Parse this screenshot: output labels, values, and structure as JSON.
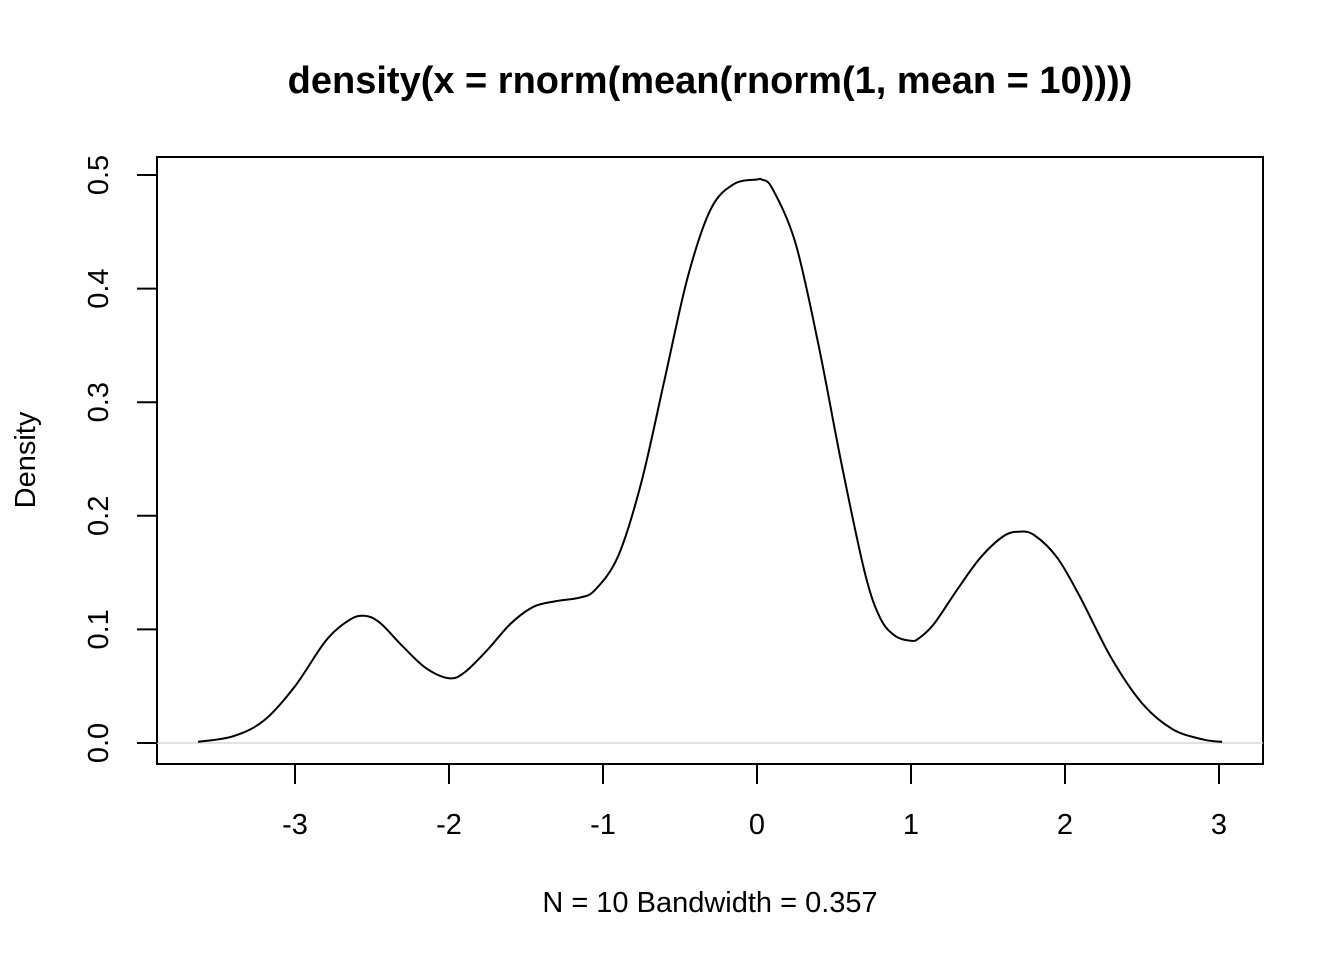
{
  "chart_data": {
    "type": "line",
    "title": "density(x = rnorm(mean(rnorm(1, mean = 10))))",
    "xlabel": "N = 10   Bandwidth = 0.357",
    "ylabel": "Density",
    "xlim": [
      -3.6,
      3.1
    ],
    "ylim": [
      0,
      0.52
    ],
    "x_ticks": [
      -3,
      -2,
      -1,
      0,
      1,
      2,
      3
    ],
    "x_tick_labels": [
      "-3",
      "-2",
      "-1",
      "0",
      "1",
      "2",
      "3"
    ],
    "y_ticks": [
      0.0,
      0.1,
      0.2,
      0.3,
      0.4,
      0.5
    ],
    "y_tick_labels": [
      "0.0",
      "0.1",
      "0.2",
      "0.3",
      "0.4",
      "0.5"
    ],
    "grid": false,
    "zero_line": true,
    "colors": {
      "line": "#000000",
      "zero_line": "#d9d9d9"
    },
    "series": [
      {
        "x": [
          -3.63,
          -3.4,
          -3.2,
          -3.0,
          -2.8,
          -2.65,
          -2.55,
          -2.45,
          -2.3,
          -2.15,
          -2.0,
          -1.9,
          -1.75,
          -1.6,
          -1.45,
          -1.3,
          -1.15,
          -1.05,
          -0.9,
          -0.75,
          -0.6,
          -0.45,
          -0.3,
          -0.15,
          0.0,
          0.03,
          0.1,
          0.25,
          0.4,
          0.55,
          0.7,
          0.8,
          0.9,
          1.0,
          1.05,
          1.15,
          1.3,
          1.45,
          1.6,
          1.7,
          1.8,
          1.95,
          2.1,
          2.3,
          2.5,
          2.7,
          2.9,
          3.02
        ],
        "y": [
          0.001,
          0.006,
          0.02,
          0.05,
          0.09,
          0.108,
          0.112,
          0.106,
          0.085,
          0.066,
          0.057,
          0.062,
          0.082,
          0.105,
          0.12,
          0.125,
          0.128,
          0.135,
          0.165,
          0.23,
          0.32,
          0.41,
          0.47,
          0.492,
          0.496,
          0.496,
          0.488,
          0.44,
          0.35,
          0.245,
          0.15,
          0.11,
          0.094,
          0.09,
          0.092,
          0.105,
          0.135,
          0.163,
          0.182,
          0.186,
          0.183,
          0.163,
          0.128,
          0.075,
          0.035,
          0.012,
          0.003,
          0.001
        ]
      }
    ]
  }
}
